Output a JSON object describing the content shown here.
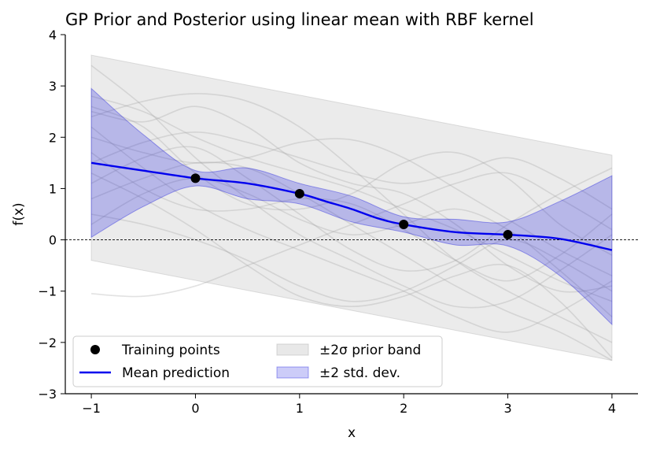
{
  "chart_data": {
    "type": "line",
    "title": "GP Prior and Posterior using linear mean with RBF kernel",
    "xlabel": "x",
    "ylabel": "f(x)",
    "xlim": [
      -1.25,
      4.25
    ],
    "ylim": [
      -3,
      4
    ],
    "xticks": [
      -1,
      0,
      1,
      2,
      3,
      4
    ],
    "yticks": [
      -3,
      -2,
      -1,
      0,
      1,
      2,
      3,
      4
    ],
    "grid": false,
    "zero_line": 0,
    "legend_position": "lower-left",
    "legend": {
      "training": "Training points",
      "mean": "Mean prediction",
      "prior_band": "±2σ prior band",
      "posterior_band": "±2 std. dev."
    },
    "colors": {
      "mean": "#0000ee",
      "posterior_fill": "#0000dd",
      "prior_fill": "#bdbdbd",
      "samples": "#9e9e9e",
      "points": "#000000"
    },
    "training_points": {
      "x": [
        0,
        1,
        2,
        3
      ],
      "y": [
        1.2,
        0.9,
        0.3,
        0.1
      ]
    },
    "prior_band": {
      "x": [
        -1,
        4
      ],
      "lower": [
        -0.4,
        -2.35
      ],
      "upper": [
        3.6,
        1.65
      ]
    },
    "mean_prediction": {
      "x": [
        -1,
        -0.5,
        0,
        0.5,
        1,
        1.25,
        1.5,
        1.75,
        2,
        2.5,
        3,
        3.5,
        4
      ],
      "y": [
        1.5,
        1.35,
        1.2,
        1.1,
        0.9,
        0.75,
        0.6,
        0.42,
        0.3,
        0.15,
        0.1,
        0.02,
        -0.2
      ]
    },
    "posterior_band": {
      "x": [
        -1,
        -0.5,
        0,
        0.5,
        1,
        1.5,
        2,
        2.5,
        3,
        3.5,
        4
      ],
      "lower": [
        0.05,
        0.65,
        1.05,
        0.8,
        0.7,
        0.35,
        0.15,
        -0.1,
        -0.12,
        -0.7,
        -1.65
      ],
      "upper": [
        2.95,
        2.05,
        1.35,
        1.4,
        1.1,
        0.85,
        0.45,
        0.4,
        0.35,
        0.75,
        1.25
      ]
    },
    "prior_samples": [
      {
        "x": [
          -1,
          -0.5,
          0,
          0.5,
          1,
          1.5,
          2,
          2.5,
          3,
          3.5,
          4
        ],
        "y": [
          2.8,
          2.5,
          2.0,
          1.6,
          1.3,
          1.0,
          0.6,
          0.2,
          -0.3,
          -0.8,
          -1.2
        ]
      },
      {
        "x": [
          -1,
          -0.5,
          0,
          0.5,
          1,
          1.5,
          2,
          2.5,
          3,
          3.5,
          4
        ],
        "y": [
          1.1,
          1.6,
          1.8,
          1.2,
          0.5,
          -0.2,
          -0.6,
          -0.4,
          0.3,
          0.9,
          1.4
        ]
      },
      {
        "x": [
          -1,
          -0.5,
          0,
          0.5,
          1,
          1.5,
          2,
          2.5,
          3,
          3.5,
          4
        ],
        "y": [
          -1.05,
          -1.1,
          -0.9,
          -0.5,
          -0.1,
          0.3,
          0.7,
          1.1,
          1.3,
          0.8,
          0.2
        ]
      },
      {
        "x": [
          -1,
          -0.5,
          0,
          0.5,
          1,
          1.5,
          2,
          2.5,
          3,
          3.5,
          4
        ],
        "y": [
          2.4,
          2.7,
          2.85,
          2.7,
          2.2,
          1.4,
          0.5,
          -0.4,
          -1.0,
          -1.5,
          -2.0
        ]
      },
      {
        "x": [
          -1,
          -0.5,
          0,
          0.5,
          1,
          1.5,
          2,
          2.5,
          3,
          3.5,
          4
        ],
        "y": [
          0.5,
          0.3,
          0.0,
          -0.4,
          -0.9,
          -1.2,
          -1.0,
          -0.5,
          0.0,
          -0.4,
          -1.0
        ]
      },
      {
        "x": [
          -1,
          -0.5,
          0,
          0.5,
          1,
          1.5,
          2,
          2.5,
          3,
          3.5,
          4
        ],
        "y": [
          2.0,
          1.7,
          1.5,
          1.6,
          1.9,
          1.95,
          1.6,
          1.0,
          0.4,
          -0.2,
          -0.7
        ]
      },
      {
        "x": [
          -1,
          -0.5,
          0,
          0.5,
          1,
          1.5,
          2,
          2.5,
          3,
          3.5,
          4
        ],
        "y": [
          1.3,
          0.8,
          0.2,
          -0.5,
          -1.1,
          -1.3,
          -1.1,
          -0.7,
          -0.5,
          -1.2,
          -2.3
        ]
      },
      {
        "x": [
          -1,
          -0.5,
          0,
          0.5,
          1,
          1.5,
          2,
          2.5,
          3,
          3.5,
          4
        ],
        "y": [
          2.6,
          2.2,
          1.3,
          0.7,
          0.6,
          0.9,
          1.5,
          1.7,
          1.2,
          0.3,
          -0.3
        ]
      },
      {
        "x": [
          -1,
          -0.5,
          0,
          0.5,
          1,
          1.5,
          2,
          2.5,
          3,
          3.5,
          4
        ],
        "y": [
          0.8,
          1.2,
          1.5,
          1.4,
          0.9,
          0.3,
          -0.3,
          -0.9,
          -1.4,
          -1.8,
          -2.35
        ]
      },
      {
        "x": [
          -1,
          -0.5,
          0,
          0.5,
          1,
          1.5,
          2,
          2.5,
          3,
          3.5,
          4
        ],
        "y": [
          1.7,
          1.0,
          0.6,
          0.6,
          0.8,
          0.7,
          0.2,
          -0.4,
          -0.8,
          -0.3,
          0.5
        ]
      },
      {
        "x": [
          -1,
          -0.5,
          0,
          0.5,
          1,
          1.5,
          2,
          2.5,
          3,
          3.5,
          4
        ],
        "y": [
          3.4,
          2.6,
          1.6,
          0.8,
          0.1,
          -0.4,
          -0.9,
          -1.3,
          -1.2,
          -0.6,
          0.1
        ]
      },
      {
        "x": [
          -1,
          -0.5,
          0,
          0.5,
          1,
          1.5,
          2,
          2.5,
          3,
          3.5,
          4
        ],
        "y": [
          1.5,
          1.9,
          2.1,
          1.9,
          1.6,
          1.3,
          1.1,
          1.3,
          1.6,
          1.2,
          0.6
        ]
      },
      {
        "x": [
          -1,
          -0.5,
          0,
          0.5,
          1,
          1.5,
          2,
          2.5,
          3,
          3.5,
          4
        ],
        "y": [
          2.2,
          1.4,
          0.7,
          0.2,
          -0.2,
          -0.6,
          -1.0,
          -1.5,
          -1.8,
          -1.4,
          -0.8
        ]
      },
      {
        "x": [
          -1,
          -0.5,
          0,
          0.5,
          1,
          1.5,
          2,
          2.5,
          3,
          3.5,
          4
        ],
        "y": [
          0.3,
          0.9,
          1.2,
          0.9,
          0.4,
          0.1,
          0.3,
          0.6,
          0.2,
          -0.6,
          -1.5
        ]
      },
      {
        "x": [
          -1,
          -0.5,
          0,
          0.5,
          1,
          1.5,
          2,
          2.5,
          3,
          3.5,
          4
        ],
        "y": [
          2.5,
          2.3,
          2.6,
          2.2,
          1.5,
          1.1,
          0.9,
          0.3,
          -0.5,
          -1.0,
          -0.9
        ]
      }
    ]
  }
}
